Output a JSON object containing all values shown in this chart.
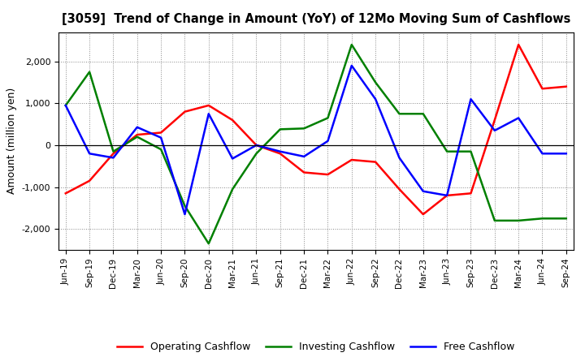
{
  "title": "[3059]  Trend of Change in Amount (YoY) of 12Mo Moving Sum of Cashflows",
  "ylabel": "Amount (million yen)",
  "x_labels": [
    "Jun-19",
    "Sep-19",
    "Dec-19",
    "Mar-20",
    "Jun-20",
    "Sep-20",
    "Dec-20",
    "Mar-21",
    "Jun-21",
    "Sep-21",
    "Dec-21",
    "Mar-22",
    "Jun-22",
    "Sep-22",
    "Dec-22",
    "Mar-23",
    "Jun-23",
    "Sep-23",
    "Dec-23",
    "Mar-24",
    "Jun-24",
    "Sep-24"
  ],
  "operating": [
    -1150,
    -850,
    -200,
    250,
    300,
    800,
    950,
    600,
    0,
    -200,
    -650,
    -700,
    -350,
    -400,
    -1050,
    -1650,
    -1200,
    -1150,
    600,
    2400,
    1350,
    1400
  ],
  "investing": [
    950,
    1750,
    -150,
    200,
    -100,
    -1450,
    -2350,
    -1050,
    -200,
    380,
    400,
    650,
    2400,
    1500,
    750,
    750,
    -150,
    -150,
    -1800,
    -1800,
    -1750,
    -1750
  ],
  "free": [
    950,
    -200,
    -300,
    430,
    180,
    -1650,
    750,
    -320,
    0,
    -150,
    -270,
    100,
    1900,
    1100,
    -300,
    -1100,
    -1200,
    1100,
    350,
    650,
    -200,
    -200
  ],
  "ylim": [
    -2500,
    2700
  ],
  "yticks": [
    -2000,
    -1000,
    0,
    1000,
    2000
  ],
  "operating_color": "#ff0000",
  "investing_color": "#008000",
  "free_color": "#0000ff",
  "line_width": 1.8,
  "background_color": "#ffffff",
  "grid_color": "#888888",
  "legend_labels": [
    "Operating Cashflow",
    "Investing Cashflow",
    "Free Cashflow"
  ]
}
